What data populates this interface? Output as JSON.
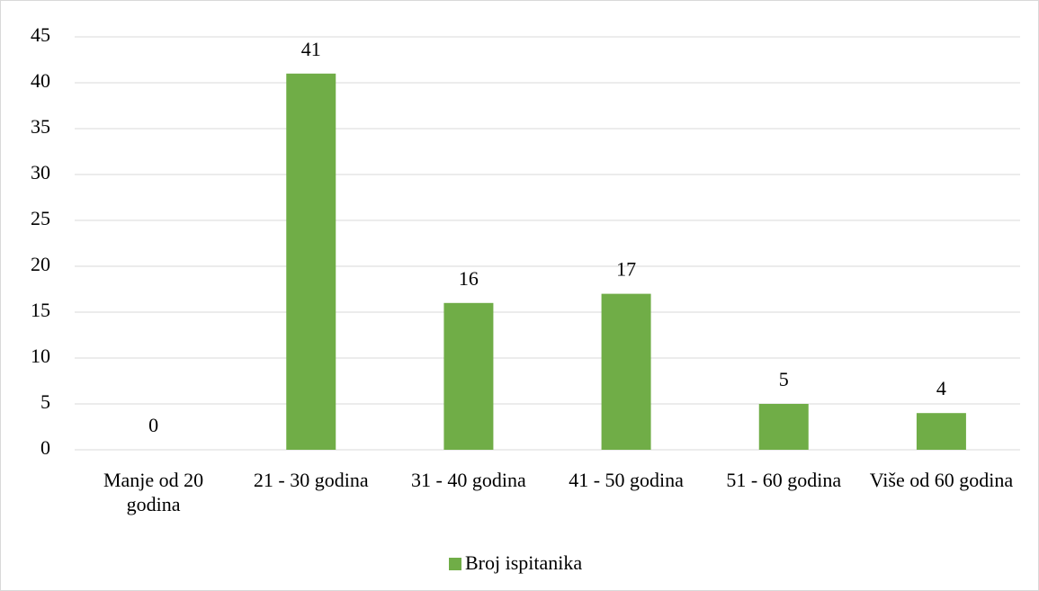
{
  "chart_data": {
    "type": "bar",
    "categories": [
      "Manje od 20 godina",
      "21 - 30 godina",
      "31 - 40 godina",
      "41 - 50 godina",
      "51 - 60 godina",
      "Više od 60 godina"
    ],
    "series": [
      {
        "name": "Broj ispitanika",
        "color": "#70ad47",
        "values": [
          0,
          41,
          16,
          17,
          5,
          4
        ]
      }
    ],
    "ylim": [
      0,
      45
    ],
    "yticks": [
      0,
      5,
      10,
      15,
      20,
      25,
      30,
      35,
      40,
      45
    ],
    "grid": true,
    "legend": "bottom"
  }
}
